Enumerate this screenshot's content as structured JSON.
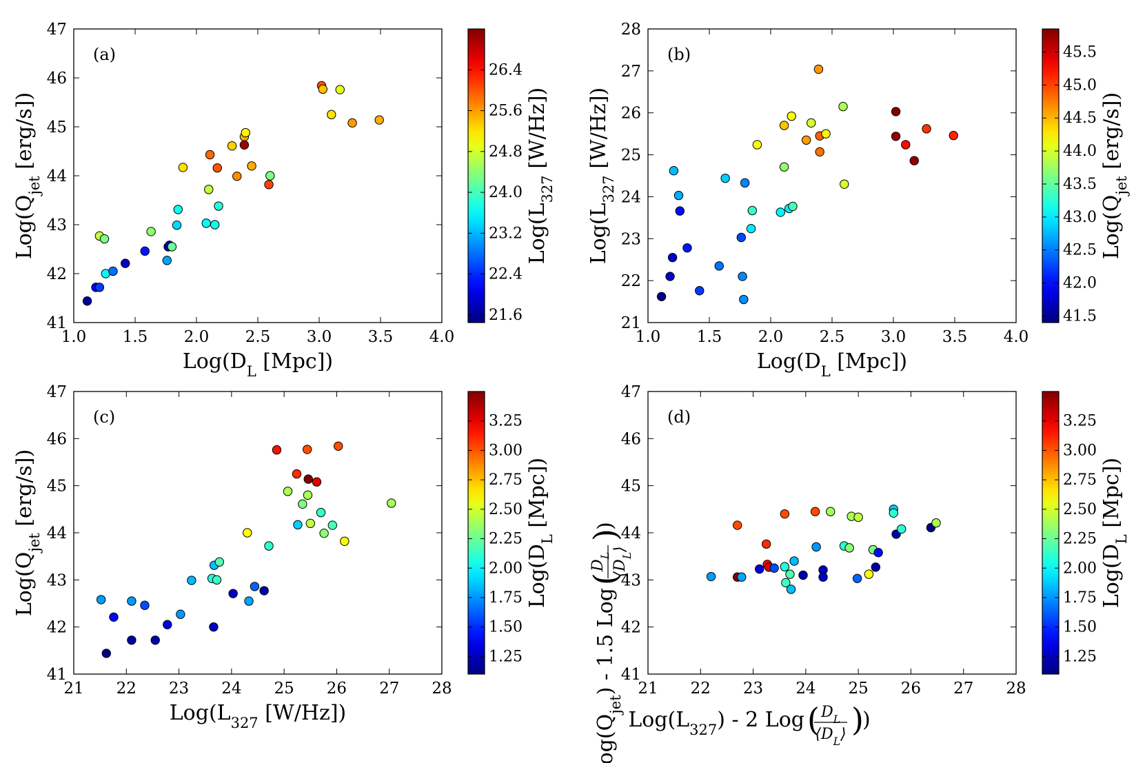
{
  "figure": {
    "description_free": true
  },
  "chart_data": [
    {
      "id": "a",
      "type": "scatter",
      "label": "(a)",
      "xlabel": "Log(D_L [Mpc])",
      "ylabel": "Log(Q_jet [erg/s])",
      "colorbar_label": "Log(L_327 [W/Hz])",
      "xlim": [
        1.0,
        4.0
      ],
      "ylim": [
        41,
        47
      ],
      "clim": [
        21.45,
        27.2
      ],
      "xticks": [
        1.0,
        1.5,
        2.0,
        2.5,
        3.0,
        3.5,
        4.0
      ],
      "xtick_labels": [
        "1.0",
        "1.5",
        "2.0",
        "2.5",
        "3.0",
        "3.5",
        "4.0"
      ],
      "yticks": [
        41,
        42,
        43,
        44,
        45,
        46,
        47
      ],
      "ytick_labels": [
        "41",
        "42",
        "43",
        "44",
        "45",
        "46",
        "47"
      ],
      "cticks": [
        21.6,
        22.4,
        23.2,
        24.0,
        24.8,
        25.6,
        26.4
      ],
      "ctick_labels": [
        "21.6",
        "22.4",
        "23.2",
        "24.0",
        "24.8",
        "25.6",
        "26.4"
      ],
      "points": [
        {
          "x": 1.11,
          "y": 41.44,
          "c": 21.6
        },
        {
          "x": 1.18,
          "y": 41.72,
          "c": 22.1
        },
        {
          "x": 1.21,
          "y": 41.72,
          "c": 22.5
        },
        {
          "x": 1.21,
          "y": 42.77,
          "c": 24.7
        },
        {
          "x": 1.25,
          "y": 42.71,
          "c": 24.3
        },
        {
          "x": 1.26,
          "y": 42.0,
          "c": 23.6
        },
        {
          "x": 1.32,
          "y": 42.05,
          "c": 22.8
        },
        {
          "x": 1.42,
          "y": 42.21,
          "c": 21.8
        },
        {
          "x": 1.58,
          "y": 42.46,
          "c": 22.3
        },
        {
          "x": 1.63,
          "y": 42.86,
          "c": 24.4
        },
        {
          "x": 1.76,
          "y": 42.27,
          "c": 23.1
        },
        {
          "x": 1.77,
          "y": 42.55,
          "c": 22.0
        },
        {
          "x": 1.78,
          "y": 42.58,
          "c": 21.8
        },
        {
          "x": 1.8,
          "y": 42.55,
          "c": 24.2
        },
        {
          "x": 1.84,
          "y": 42.99,
          "c": 23.4
        },
        {
          "x": 1.85,
          "y": 43.31,
          "c": 23.7
        },
        {
          "x": 1.89,
          "y": 44.17,
          "c": 25.2
        },
        {
          "x": 2.08,
          "y": 43.03,
          "c": 23.6
        },
        {
          "x": 2.1,
          "y": 43.72,
          "c": 24.7
        },
        {
          "x": 2.11,
          "y": 44.43,
          "c": 25.9
        },
        {
          "x": 2.15,
          "y": 43.0,
          "c": 23.7
        },
        {
          "x": 2.17,
          "y": 44.16,
          "c": 26.0
        },
        {
          "x": 2.18,
          "y": 43.38,
          "c": 23.8
        },
        {
          "x": 2.29,
          "y": 44.61,
          "c": 25.3
        },
        {
          "x": 2.33,
          "y": 43.99,
          "c": 25.7
        },
        {
          "x": 2.39,
          "y": 44.8,
          "c": 25.5
        },
        {
          "x": 2.39,
          "y": 44.63,
          "c": 27.0
        },
        {
          "x": 2.4,
          "y": 44.88,
          "c": 25.1
        },
        {
          "x": 2.45,
          "y": 44.2,
          "c": 25.5
        },
        {
          "x": 2.59,
          "y": 43.82,
          "c": 26.1
        },
        {
          "x": 2.6,
          "y": 44.0,
          "c": 24.3
        },
        {
          "x": 3.02,
          "y": 45.84,
          "c": 26.0
        },
        {
          "x": 3.03,
          "y": 45.77,
          "c": 25.4
        },
        {
          "x": 3.1,
          "y": 45.25,
          "c": 25.2
        },
        {
          "x": 3.17,
          "y": 45.76,
          "c": 24.9
        },
        {
          "x": 3.27,
          "y": 45.08,
          "c": 25.6
        },
        {
          "x": 3.49,
          "y": 45.14,
          "c": 25.5
        }
      ]
    },
    {
      "id": "b",
      "type": "scatter",
      "label": "(b)",
      "xlabel": "Log(D_L [Mpc])",
      "ylabel": "Log(L_327 [W/Hz])",
      "colorbar_label": "Log(Q_jet [erg/s])",
      "xlim": [
        1.0,
        4.0
      ],
      "ylim": [
        21,
        28
      ],
      "clim": [
        41.4,
        45.85
      ],
      "xticks": [
        1.0,
        1.5,
        2.0,
        2.5,
        3.0,
        3.5,
        4.0
      ],
      "xtick_labels": [
        "1.0",
        "1.5",
        "2.0",
        "2.5",
        "3.0",
        "3.5",
        "4.0"
      ],
      "yticks": [
        21,
        22,
        23,
        24,
        25,
        26,
        27,
        28
      ],
      "ytick_labels": [
        "21",
        "22",
        "23",
        "24",
        "25",
        "26",
        "27",
        "28"
      ],
      "cticks": [
        41.5,
        42.0,
        42.5,
        43.0,
        43.5,
        44.0,
        44.5,
        45.0,
        45.5
      ],
      "ctick_labels": [
        "41.5",
        "42.0",
        "42.5",
        "43.0",
        "43.5",
        "44.0",
        "44.5",
        "45.0",
        "45.5"
      ],
      "points": [
        {
          "x": 1.11,
          "y": 21.62,
          "c": 41.44
        },
        {
          "x": 1.18,
          "y": 22.1,
          "c": 41.72
        },
        {
          "x": 1.2,
          "y": 22.55,
          "c": 41.72
        },
        {
          "x": 1.21,
          "y": 24.62,
          "c": 42.77
        },
        {
          "x": 1.25,
          "y": 24.03,
          "c": 42.71
        },
        {
          "x": 1.26,
          "y": 23.66,
          "c": 42.0
        },
        {
          "x": 1.32,
          "y": 22.78,
          "c": 42.05
        },
        {
          "x": 1.42,
          "y": 21.76,
          "c": 42.21
        },
        {
          "x": 1.58,
          "y": 22.35,
          "c": 42.46
        },
        {
          "x": 1.63,
          "y": 24.44,
          "c": 42.86
        },
        {
          "x": 1.76,
          "y": 23.03,
          "c": 42.27
        },
        {
          "x": 1.77,
          "y": 22.1,
          "c": 42.55
        },
        {
          "x": 1.78,
          "y": 21.55,
          "c": 42.58
        },
        {
          "x": 1.79,
          "y": 24.33,
          "c": 42.55
        },
        {
          "x": 1.84,
          "y": 23.24,
          "c": 42.99
        },
        {
          "x": 1.85,
          "y": 23.67,
          "c": 43.31
        },
        {
          "x": 1.89,
          "y": 25.24,
          "c": 44.17
        },
        {
          "x": 2.08,
          "y": 23.63,
          "c": 43.03
        },
        {
          "x": 2.11,
          "y": 24.71,
          "c": 43.72
        },
        {
          "x": 2.11,
          "y": 25.7,
          "c": 44.43
        },
        {
          "x": 2.15,
          "y": 23.72,
          "c": 43.0
        },
        {
          "x": 2.17,
          "y": 25.92,
          "c": 44.16
        },
        {
          "x": 2.18,
          "y": 23.77,
          "c": 43.38
        },
        {
          "x": 2.29,
          "y": 25.35,
          "c": 44.61
        },
        {
          "x": 2.33,
          "y": 25.76,
          "c": 43.99
        },
        {
          "x": 2.39,
          "y": 27.04,
          "c": 44.63
        },
        {
          "x": 2.4,
          "y": 25.07,
          "c": 44.8
        },
        {
          "x": 2.4,
          "y": 25.45,
          "c": 44.88
        },
        {
          "x": 2.45,
          "y": 25.5,
          "c": 44.2
        },
        {
          "x": 2.59,
          "y": 26.15,
          "c": 43.82
        },
        {
          "x": 2.6,
          "y": 24.3,
          "c": 44.0
        },
        {
          "x": 3.02,
          "y": 26.03,
          "c": 45.84
        },
        {
          "x": 3.02,
          "y": 25.44,
          "c": 45.77
        },
        {
          "x": 3.1,
          "y": 25.24,
          "c": 45.25
        },
        {
          "x": 3.17,
          "y": 24.86,
          "c": 45.76
        },
        {
          "x": 3.27,
          "y": 25.62,
          "c": 45.08
        },
        {
          "x": 3.49,
          "y": 25.46,
          "c": 45.14
        }
      ]
    },
    {
      "id": "c",
      "type": "scatter",
      "label": "(c)",
      "xlabel": "Log(L_327 [W/Hz])",
      "ylabel": "Log(Q_jet [erg/s])",
      "colorbar_label": "Log(D_L [Mpc])",
      "xlim": [
        21,
        28
      ],
      "ylim": [
        41,
        47
      ],
      "clim": [
        1.1,
        3.5
      ],
      "xticks": [
        21,
        22,
        23,
        24,
        25,
        26,
        27,
        28
      ],
      "xtick_labels": [
        "21",
        "22",
        "23",
        "24",
        "25",
        "26",
        "27",
        "28"
      ],
      "yticks": [
        41,
        42,
        43,
        44,
        45,
        46,
        47
      ],
      "ytick_labels": [
        "41",
        "42",
        "43",
        "44",
        "45",
        "46",
        "47"
      ],
      "cticks": [
        1.25,
        1.5,
        1.75,
        2.0,
        2.25,
        2.5,
        2.75,
        3.0,
        3.25
      ],
      "ctick_labels": [
        "1.25",
        "1.50",
        "1.75",
        "2.00",
        "2.25",
        "2.50",
        "2.75",
        "3.00",
        "3.25"
      ],
      "points": [
        {
          "x": 21.52,
          "y": 42.58,
          "c": 1.77
        },
        {
          "x": 21.62,
          "y": 41.44,
          "c": 1.11
        },
        {
          "x": 21.76,
          "y": 42.21,
          "c": 1.42
        },
        {
          "x": 22.1,
          "y": 41.72,
          "c": 1.18
        },
        {
          "x": 22.1,
          "y": 42.55,
          "c": 1.77
        },
        {
          "x": 22.35,
          "y": 42.46,
          "c": 1.58
        },
        {
          "x": 22.55,
          "y": 41.72,
          "c": 1.21
        },
        {
          "x": 22.78,
          "y": 42.05,
          "c": 1.32
        },
        {
          "x": 23.03,
          "y": 42.27,
          "c": 1.76
        },
        {
          "x": 23.24,
          "y": 42.99,
          "c": 1.84
        },
        {
          "x": 23.63,
          "y": 43.03,
          "c": 2.08
        },
        {
          "x": 23.66,
          "y": 42.0,
          "c": 1.26
        },
        {
          "x": 23.67,
          "y": 43.31,
          "c": 1.85
        },
        {
          "x": 23.72,
          "y": 43.0,
          "c": 2.15
        },
        {
          "x": 23.77,
          "y": 43.38,
          "c": 2.18
        },
        {
          "x": 24.03,
          "y": 42.71,
          "c": 1.25
        },
        {
          "x": 24.3,
          "y": 44.0,
          "c": 2.6
        },
        {
          "x": 24.33,
          "y": 42.55,
          "c": 1.79
        },
        {
          "x": 24.44,
          "y": 42.86,
          "c": 1.63
        },
        {
          "x": 24.62,
          "y": 42.77,
          "c": 1.21
        },
        {
          "x": 24.71,
          "y": 43.72,
          "c": 2.11
        },
        {
          "x": 24.86,
          "y": 45.76,
          "c": 3.17
        },
        {
          "x": 25.07,
          "y": 44.88,
          "c": 2.4
        },
        {
          "x": 25.24,
          "y": 45.25,
          "c": 3.1
        },
        {
          "x": 25.26,
          "y": 44.17,
          "c": 1.89
        },
        {
          "x": 25.35,
          "y": 44.61,
          "c": 2.29
        },
        {
          "x": 25.44,
          "y": 45.77,
          "c": 3.02
        },
        {
          "x": 25.45,
          "y": 44.8,
          "c": 2.4
        },
        {
          "x": 25.46,
          "y": 45.14,
          "c": 3.49
        },
        {
          "x": 25.5,
          "y": 44.2,
          "c": 2.45
        },
        {
          "x": 25.62,
          "y": 45.08,
          "c": 3.27
        },
        {
          "x": 25.7,
          "y": 44.43,
          "c": 2.11
        },
        {
          "x": 25.76,
          "y": 43.99,
          "c": 2.33
        },
        {
          "x": 25.92,
          "y": 44.16,
          "c": 2.17
        },
        {
          "x": 26.03,
          "y": 45.84,
          "c": 3.02
        },
        {
          "x": 26.15,
          "y": 43.82,
          "c": 2.59
        },
        {
          "x": 27.04,
          "y": 44.63,
          "c": 2.39
        }
      ]
    },
    {
      "id": "d",
      "type": "scatter",
      "label": "(d)",
      "xlabel_prefix": "Log(L",
      "xlabel_sub": "327",
      "xlabel_suffix": ") - 2 Log",
      "ylabel_prefix": "Log(Q",
      "ylabel_sub": "jet",
      "ylabel_suffix": ") - 1.5 Log",
      "frac_num": "D",
      "frac_num_sub": "L",
      "frac_den": "⟨D",
      "frac_den_sub": "L",
      "frac_den_close": "⟩",
      "colorbar_label": "Log(D_L [Mpc])",
      "xlim": [
        21,
        28
      ],
      "ylim": [
        41,
        47
      ],
      "clim": [
        1.1,
        3.5
      ],
      "xticks": [
        21,
        22,
        23,
        24,
        25,
        26,
        27,
        28
      ],
      "xtick_labels": [
        "21",
        "22",
        "23",
        "24",
        "25",
        "26",
        "27",
        "28"
      ],
      "yticks": [
        41,
        42,
        43,
        44,
        45,
        46,
        47
      ],
      "ytick_labels": [
        "41",
        "42",
        "43",
        "44",
        "45",
        "46",
        "47"
      ],
      "cticks": [
        1.25,
        1.5,
        1.75,
        2.0,
        2.25,
        2.5,
        2.75,
        3.0,
        3.25
      ],
      "ctick_labels": [
        "1.25",
        "1.50",
        "1.75",
        "2.00",
        "2.25",
        "2.50",
        "2.75",
        "3.00",
        "3.25"
      ],
      "points": [
        {
          "x": 22.2,
          "y": 43.07,
          "c": 1.77
        },
        {
          "x": 22.7,
          "y": 44.16,
          "c": 3.02
        },
        {
          "x": 22.7,
          "y": 43.06,
          "c": 3.49
        },
        {
          "x": 22.78,
          "y": 43.06,
          "c": 1.79
        },
        {
          "x": 23.12,
          "y": 43.23,
          "c": 1.32
        },
        {
          "x": 23.25,
          "y": 43.76,
          "c": 3.1
        },
        {
          "x": 23.27,
          "y": 43.33,
          "c": 3.17
        },
        {
          "x": 23.3,
          "y": 43.27,
          "c": 3.27
        },
        {
          "x": 23.4,
          "y": 43.25,
          "c": 1.58
        },
        {
          "x": 23.6,
          "y": 44.4,
          "c": 3.02
        },
        {
          "x": 23.6,
          "y": 43.28,
          "c": 2.08
        },
        {
          "x": 23.62,
          "y": 42.94,
          "c": 2.15
        },
        {
          "x": 23.7,
          "y": 43.12,
          "c": 2.18
        },
        {
          "x": 23.72,
          "y": 42.8,
          "c": 1.85
        },
        {
          "x": 23.78,
          "y": 43.4,
          "c": 1.84
        },
        {
          "x": 23.95,
          "y": 43.1,
          "c": 1.21
        },
        {
          "x": 24.18,
          "y": 44.45,
          "c": 3.03
        },
        {
          "x": 24.2,
          "y": 43.7,
          "c": 1.76
        },
        {
          "x": 24.33,
          "y": 43.21,
          "c": 1.25
        },
        {
          "x": 24.33,
          "y": 43.06,
          "c": 1.26
        },
        {
          "x": 24.47,
          "y": 44.45,
          "c": 2.39
        },
        {
          "x": 24.73,
          "y": 43.72,
          "c": 2.11
        },
        {
          "x": 24.83,
          "y": 43.68,
          "c": 2.33
        },
        {
          "x": 24.87,
          "y": 44.35,
          "c": 2.4
        },
        {
          "x": 24.98,
          "y": 43.03,
          "c": 1.63
        },
        {
          "x": 25.0,
          "y": 44.33,
          "c": 2.45
        },
        {
          "x": 25.2,
          "y": 43.12,
          "c": 2.6
        },
        {
          "x": 25.28,
          "y": 43.64,
          "c": 2.29
        },
        {
          "x": 25.33,
          "y": 43.27,
          "c": 1.18
        },
        {
          "x": 25.38,
          "y": 43.58,
          "c": 1.42
        },
        {
          "x": 25.67,
          "y": 44.5,
          "c": 1.89
        },
        {
          "x": 25.67,
          "y": 44.42,
          "c": 2.1
        },
        {
          "x": 25.72,
          "y": 43.97,
          "c": 1.21
        },
        {
          "x": 25.82,
          "y": 44.08,
          "c": 2.11
        },
        {
          "x": 26.38,
          "y": 44.11,
          "c": 1.11
        },
        {
          "x": 26.48,
          "y": 44.21,
          "c": 2.4
        }
      ]
    }
  ]
}
